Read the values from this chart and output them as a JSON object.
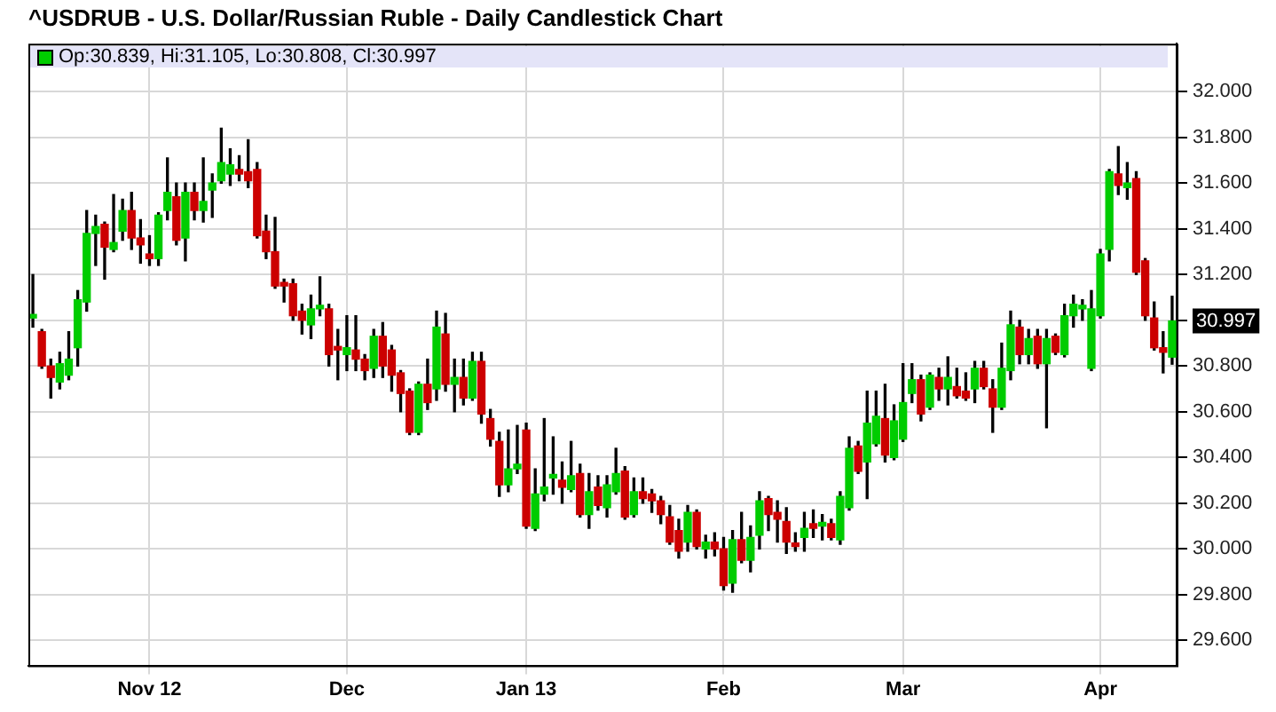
{
  "chart_data": {
    "type": "candlestick",
    "title": "^USDRUB - U.S. Dollar/Russian Ruble - Daily Candlestick Chart",
    "categories": [
      null,
      null,
      null,
      null,
      null,
      null,
      null,
      null,
      null,
      null,
      null,
      null,
      null,
      "Nov 12",
      null,
      null,
      null,
      null,
      null,
      null,
      null,
      null,
      null,
      null,
      null,
      null,
      null,
      null,
      null,
      null,
      null,
      null,
      null,
      null,
      null,
      "Dec",
      null,
      null,
      null,
      null,
      null,
      null,
      null,
      null,
      null,
      null,
      null,
      null,
      null,
      null,
      null,
      null,
      null,
      null,
      null,
      "Jan 13",
      null,
      null,
      null,
      null,
      null,
      null,
      null,
      null,
      null,
      null,
      null,
      null,
      null,
      null,
      null,
      null,
      null,
      null,
      null,
      null,
      null,
      "Feb",
      null,
      null,
      null,
      null,
      null,
      null,
      null,
      null,
      null,
      null,
      null,
      null,
      null,
      null,
      null,
      null,
      null,
      null,
      null,
      "Mar",
      null,
      null,
      null,
      null,
      null,
      null,
      null,
      null,
      null,
      null,
      null,
      null,
      null,
      null,
      null,
      null,
      null,
      null,
      null,
      null,
      null,
      "Apr",
      null,
      null,
      null,
      null,
      null,
      null,
      null,
      null
    ],
    "ohlc": [
      [
        31.01,
        31.2,
        30.97,
        31.02
      ],
      [
        30.95,
        30.96,
        30.79,
        30.8
      ],
      [
        30.8,
        30.83,
        30.66,
        30.75
      ],
      [
        30.73,
        30.86,
        30.7,
        30.81
      ],
      [
        30.76,
        30.95,
        30.74,
        30.83
      ],
      [
        30.88,
        31.13,
        30.8,
        31.09
      ],
      [
        31.08,
        31.48,
        31.04,
        31.38
      ],
      [
        31.38,
        31.46,
        31.24,
        31.41
      ],
      [
        31.42,
        31.43,
        31.18,
        31.32
      ],
      [
        31.31,
        31.55,
        31.3,
        31.34
      ],
      [
        31.39,
        31.53,
        31.35,
        31.48
      ],
      [
        31.48,
        31.56,
        31.31,
        31.36
      ],
      [
        31.36,
        31.44,
        31.25,
        31.33
      ],
      [
        31.29,
        31.37,
        31.24,
        31.27
      ],
      [
        31.27,
        31.47,
        31.24,
        31.46
      ],
      [
        31.48,
        31.71,
        31.44,
        31.56
      ],
      [
        31.54,
        31.6,
        31.33,
        31.35
      ],
      [
        31.36,
        31.6,
        31.26,
        31.56
      ],
      [
        31.56,
        31.6,
        31.44,
        31.48
      ],
      [
        31.48,
        31.71,
        31.43,
        31.52
      ],
      [
        31.57,
        31.64,
        31.45,
        31.6
      ],
      [
        31.61,
        31.84,
        31.6,
        31.69
      ],
      [
        31.64,
        31.75,
        31.59,
        31.68
      ],
      [
        31.66,
        31.72,
        31.61,
        31.64
      ],
      [
        31.65,
        31.79,
        31.58,
        31.61
      ],
      [
        31.66,
        31.69,
        31.36,
        31.37
      ],
      [
        31.39,
        31.46,
        31.27,
        31.3
      ],
      [
        31.3,
        31.45,
        31.14,
        31.15
      ],
      [
        31.16,
        31.18,
        31.08,
        31.15
      ],
      [
        31.16,
        31.18,
        31.0,
        31.02
      ],
      [
        31.04,
        31.07,
        30.94,
        31.0
      ],
      [
        30.98,
        31.11,
        30.92,
        31.05
      ],
      [
        31.05,
        31.19,
        31.02,
        31.06
      ],
      [
        31.05,
        31.07,
        30.8,
        30.85
      ],
      [
        30.88,
        30.96,
        30.74,
        30.87
      ],
      [
        30.85,
        31.02,
        30.78,
        30.88
      ],
      [
        30.87,
        31.02,
        30.78,
        30.83
      ],
      [
        30.83,
        30.85,
        30.74,
        30.78
      ],
      [
        30.79,
        30.96,
        30.75,
        30.93
      ],
      [
        30.93,
        30.99,
        30.75,
        30.8
      ],
      [
        30.87,
        30.89,
        30.69,
        30.76
      ],
      [
        30.77,
        30.78,
        30.6,
        30.68
      ],
      [
        30.69,
        30.7,
        30.5,
        30.51
      ],
      [
        30.51,
        30.73,
        30.5,
        30.72
      ],
      [
        30.72,
        30.83,
        30.61,
        30.64
      ],
      [
        30.7,
        31.04,
        30.65,
        30.97
      ],
      [
        30.94,
        31.03,
        30.69,
        30.72
      ],
      [
        30.72,
        30.83,
        30.6,
        30.75
      ],
      [
        30.75,
        30.83,
        30.63,
        30.66
      ],
      [
        30.66,
        30.86,
        30.65,
        30.82
      ],
      [
        30.82,
        30.86,
        30.55,
        30.59
      ],
      [
        30.57,
        30.61,
        30.45,
        30.48
      ],
      [
        30.47,
        30.51,
        30.23,
        30.28
      ],
      [
        30.28,
        30.52,
        30.25,
        30.35
      ],
      [
        30.35,
        30.54,
        30.33,
        30.37
      ],
      [
        30.52,
        30.55,
        30.09,
        30.1
      ],
      [
        30.09,
        30.35,
        30.08,
        30.24
      ],
      [
        30.24,
        30.57,
        30.21,
        30.27
      ],
      [
        30.31,
        30.49,
        30.24,
        30.32
      ],
      [
        30.3,
        30.38,
        30.2,
        30.27
      ],
      [
        30.26,
        30.47,
        30.25,
        30.32
      ],
      [
        30.33,
        30.37,
        30.14,
        30.15
      ],
      [
        30.15,
        30.33,
        30.09,
        30.25
      ],
      [
        30.27,
        30.32,
        30.17,
        30.19
      ],
      [
        30.18,
        30.32,
        30.14,
        30.28
      ],
      [
        30.25,
        30.44,
        30.24,
        30.33
      ],
      [
        30.34,
        30.36,
        30.13,
        30.14
      ],
      [
        30.15,
        30.31,
        30.14,
        30.25
      ],
      [
        30.25,
        30.31,
        30.2,
        30.22
      ],
      [
        30.24,
        30.26,
        30.16,
        30.21
      ],
      [
        30.21,
        30.23,
        30.11,
        30.15
      ],
      [
        30.14,
        30.19,
        30.02,
        30.03
      ],
      [
        30.08,
        30.13,
        29.96,
        29.99
      ],
      [
        30.03,
        30.19,
        29.99,
        30.16
      ],
      [
        30.16,
        30.17,
        30.0,
        30.01
      ],
      [
        30.0,
        30.06,
        29.96,
        30.03
      ],
      [
        30.03,
        30.07,
        29.97,
        30.0
      ],
      [
        30.0,
        30.05,
        29.82,
        29.84
      ],
      [
        29.85,
        30.08,
        29.81,
        30.04
      ],
      [
        30.04,
        30.16,
        29.94,
        29.95
      ],
      [
        29.95,
        30.1,
        29.9,
        30.05
      ],
      [
        30.06,
        30.25,
        30.0,
        30.21
      ],
      [
        30.22,
        30.23,
        30.08,
        30.15
      ],
      [
        30.16,
        30.21,
        30.03,
        30.13
      ],
      [
        30.12,
        30.18,
        29.98,
        30.03
      ],
      [
        30.02,
        30.07,
        29.99,
        30.01
      ],
      [
        30.05,
        30.16,
        29.99,
        30.09
      ],
      [
        30.11,
        30.17,
        30.05,
        30.09
      ],
      [
        30.1,
        30.15,
        30.04,
        30.11
      ],
      [
        30.11,
        30.13,
        30.04,
        30.05
      ],
      [
        30.04,
        30.25,
        30.02,
        30.23
      ],
      [
        30.18,
        30.49,
        30.17,
        30.44
      ],
      [
        30.45,
        30.47,
        30.33,
        30.34
      ],
      [
        30.38,
        30.69,
        30.22,
        30.55
      ],
      [
        30.46,
        30.69,
        30.45,
        30.58
      ],
      [
        30.57,
        30.72,
        30.38,
        30.41
      ],
      [
        30.4,
        30.63,
        30.39,
        30.56
      ],
      [
        30.48,
        30.81,
        30.47,
        30.64
      ],
      [
        30.68,
        30.81,
        30.64,
        30.74
      ],
      [
        30.74,
        30.76,
        30.56,
        30.59
      ],
      [
        30.62,
        30.77,
        30.61,
        30.76
      ],
      [
        30.75,
        30.79,
        30.65,
        30.7
      ],
      [
        30.7,
        30.84,
        30.63,
        30.75
      ],
      [
        30.71,
        30.79,
        30.66,
        30.67
      ],
      [
        30.69,
        30.77,
        30.65,
        30.66
      ],
      [
        30.7,
        30.82,
        30.64,
        30.79
      ],
      [
        30.79,
        30.82,
        30.7,
        30.71
      ],
      [
        30.7,
        30.74,
        30.51,
        30.62
      ],
      [
        30.62,
        30.9,
        30.61,
        30.79
      ],
      [
        30.78,
        31.04,
        30.74,
        30.98
      ],
      [
        30.97,
        31.0,
        30.81,
        30.85
      ],
      [
        30.85,
        30.96,
        30.81,
        30.92
      ],
      [
        30.93,
        30.96,
        30.79,
        30.81
      ],
      [
        30.81,
        30.96,
        30.53,
        30.92
      ],
      [
        30.93,
        30.94,
        30.85,
        30.86
      ],
      [
        30.85,
        31.07,
        30.84,
        31.02
      ],
      [
        31.02,
        31.11,
        30.97,
        31.07
      ],
      [
        31.05,
        31.09,
        31.0,
        31.06
      ],
      [
        30.79,
        31.13,
        30.78,
        31.05
      ],
      [
        31.02,
        31.31,
        31.01,
        31.29
      ],
      [
        31.31,
        31.66,
        31.26,
        31.65
      ],
      [
        31.64,
        31.76,
        31.55,
        31.59
      ],
      [
        31.58,
        31.69,
        31.53,
        31.6
      ],
      [
        31.62,
        31.65,
        31.2,
        31.21
      ],
      [
        31.26,
        31.27,
        31.0,
        31.02
      ],
      [
        31.01,
        31.08,
        30.87,
        30.88
      ],
      [
        30.88,
        30.95,
        30.77,
        30.86
      ],
      [
        30.839,
        31.105,
        30.808,
        30.997
      ]
    ],
    "colors": [
      "#00cc00",
      "#cc0000",
      "#cc0000",
      "#00cc00",
      "#00cc00",
      "#00cc00",
      "#00cc00",
      "#00cc00",
      "#cc0000",
      "#00cc00",
      "#00cc00",
      "#cc0000",
      "#cc0000",
      "#cc0000",
      "#00cc00",
      "#00cc00",
      "#cc0000",
      "#00cc00",
      "#cc0000",
      "#00cc00",
      "#00cc00",
      "#00cc00",
      "#00cc00",
      "#cc0000",
      "#cc0000",
      "#cc0000",
      "#cc0000",
      "#cc0000",
      "#cc0000",
      "#cc0000",
      "#cc0000",
      "#00cc00",
      "#00cc00",
      "#cc0000",
      "#cc0000",
      "#00cc00",
      "#cc0000",
      "#cc0000",
      "#00cc00",
      "#cc0000",
      "#cc0000",
      "#cc0000",
      "#cc0000",
      "#00cc00",
      "#cc0000",
      "#00cc00",
      "#cc0000",
      "#00cc00",
      "#cc0000",
      "#00cc00",
      "#cc0000",
      "#cc0000",
      "#cc0000",
      "#00cc00",
      "#00cc00",
      "#cc0000",
      "#00cc00",
      "#00cc00",
      "#00cc00",
      "#cc0000",
      "#00cc00",
      "#cc0000",
      "#00cc00",
      "#cc0000",
      "#00cc00",
      "#00cc00",
      "#cc0000",
      "#00cc00",
      "#cc0000",
      "#cc0000",
      "#cc0000",
      "#cc0000",
      "#cc0000",
      "#00cc00",
      "#cc0000",
      "#00cc00",
      "#cc0000",
      "#cc0000",
      "#00cc00",
      "#cc0000",
      "#00cc00",
      "#00cc00",
      "#cc0000",
      "#cc0000",
      "#cc0000",
      "#cc0000",
      "#00cc00",
      "#cc0000",
      "#00cc00",
      "#cc0000",
      "#00cc00",
      "#00cc00",
      "#cc0000",
      "#00cc00",
      "#00cc00",
      "#cc0000",
      "#00cc00",
      "#00cc00",
      "#00cc00",
      "#cc0000",
      "#00cc00",
      "#cc0000",
      "#00cc00",
      "#cc0000",
      "#cc0000",
      "#00cc00",
      "#cc0000",
      "#cc0000",
      "#00cc00",
      "#00cc00",
      "#cc0000",
      "#00cc00",
      "#cc0000",
      "#00cc00",
      "#cc0000",
      "#00cc00",
      "#00cc00",
      "#00cc00",
      "#00cc00",
      "#00cc00",
      "#00cc00",
      "#cc0000",
      "#00cc00",
      "#cc0000",
      "#cc0000",
      "#cc0000",
      "#cc0000",
      "#00cc00"
    ],
    "ylim": [
      29.49,
      32.21
    ],
    "yticks": [
      {
        "value": 29.6,
        "label": "29.600"
      },
      {
        "value": 29.8,
        "label": "29.800"
      },
      {
        "value": 30.0,
        "label": "30.000"
      },
      {
        "value": 30.2,
        "label": "30.200"
      },
      {
        "value": 30.4,
        "label": "30.400"
      },
      {
        "value": 30.6,
        "label": "30.600"
      },
      {
        "value": 30.8,
        "label": "30.800"
      },
      {
        "value": 31.0,
        "label": null
      },
      {
        "value": 31.2,
        "label": "31.200"
      },
      {
        "value": 31.4,
        "label": "31.400"
      },
      {
        "value": 31.6,
        "label": "31.600"
      },
      {
        "value": 31.8,
        "label": "31.800"
      },
      {
        "value": 32.0,
        "label": "32.000"
      }
    ],
    "grid": true,
    "annotations": [
      "Op:30.839, Hi:31.105, Lo:30.808, Cl:30.997",
      "30.997"
    ]
  }
}
